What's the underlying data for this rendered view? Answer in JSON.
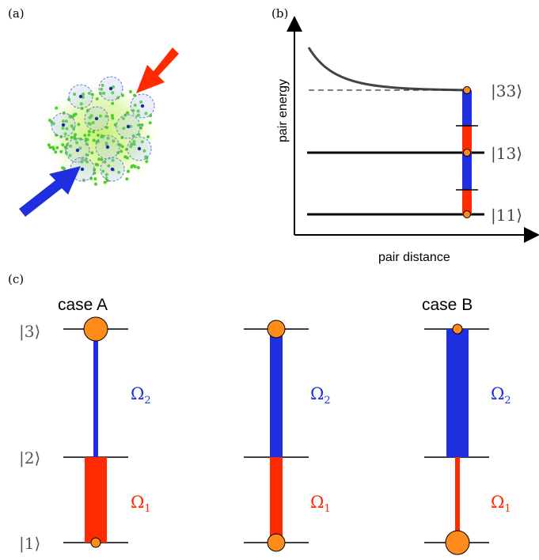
{
  "panels": {
    "a": "(a)",
    "b": "(b)",
    "c": "(c)"
  },
  "panel_b": {
    "ylabel": "pair energy",
    "xlabel": "pair distance",
    "states": [
      "|33⟩",
      "|13⟩",
      "|11⟩"
    ]
  },
  "panel_c": {
    "level_labels": [
      "|3⟩",
      "|2⟩",
      "|1⟩"
    ],
    "case_a": "case A",
    "case_b": "case B",
    "omega2": "Ω",
    "omega2_sub": "2",
    "omega1": "Ω",
    "omega1_sub": "1"
  },
  "colors": {
    "blue": "#1f2fe0",
    "red": "#ff2a00",
    "orange": "#ff8c1a",
    "green": "#4ccf2a"
  }
}
